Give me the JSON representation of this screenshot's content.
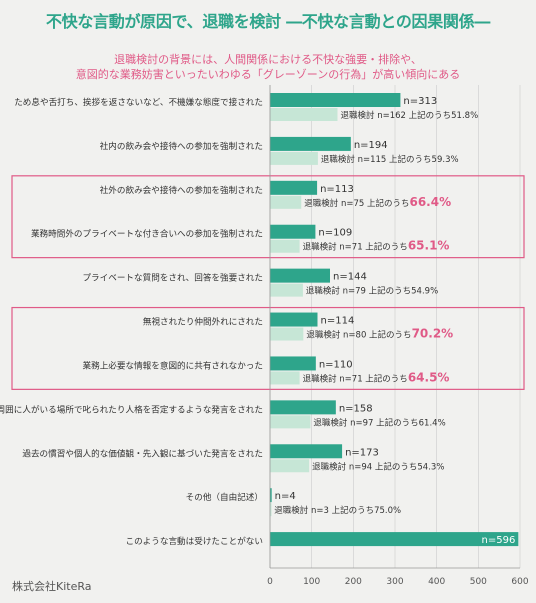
{
  "header": {
    "title": "不快な言動が原因で、退職を検討 ―不快な言動との因果関係―",
    "subtitle_lines": [
      "退職検討の背景には、人間関係における不快な強要・排除や、",
      "意図的な業務妨害といったいわゆる「グレーゾーンの行為」が高い傾向にある"
    ]
  },
  "footer": {
    "company": "株式会社KiteRa"
  },
  "colors": {
    "total_bar": "#2ea58b",
    "sub_bar": "#c6e6d6",
    "highlight": "#e05a87",
    "text": "#333333",
    "grid": "#cccccc"
  },
  "chart_data": {
    "type": "bar",
    "orientation": "horizontal",
    "xlim": [
      0,
      600
    ],
    "xticks": [
      0,
      100,
      200,
      300,
      400,
      500,
      600
    ],
    "grid": true,
    "rows": [
      {
        "label": "ため息や舌打ち、挨拶を返さないなど、不機嫌な態度で接された",
        "n": 313,
        "n_label": "n=313",
        "sub": 162,
        "sub_label": "退職検討 n=162 上記のうち",
        "pct": "51.8%",
        "highlight": false
      },
      {
        "label": "社内の飲み会や接待への参加を強制された",
        "n": 194,
        "n_label": "n=194",
        "sub": 115,
        "sub_label": "退職検討 n=115 上記のうち",
        "pct": "59.3%",
        "highlight": false
      },
      {
        "label": "社外の飲み会や接待への参加を強制された",
        "n": 113,
        "n_label": "n=113",
        "sub": 75,
        "sub_label": "退職検討 n=75 上記のうち",
        "pct": "66.4%",
        "highlight": true
      },
      {
        "label": "業務時間外のプライベートな付き合いへの参加を強制された",
        "n": 109,
        "n_label": "n=109",
        "sub": 71,
        "sub_label": "退職検討 n=71 上記のうち",
        "pct": "65.1%",
        "highlight": true
      },
      {
        "label": "プライベートな質問をされ、回答を強要された",
        "n": 144,
        "n_label": "n=144",
        "sub": 79,
        "sub_label": "退職検討 n=79 上記のうち",
        "pct": "54.9%",
        "highlight": false
      },
      {
        "label": "無視されたり仲間外れにされた",
        "n": 114,
        "n_label": "n=114",
        "sub": 80,
        "sub_label": "退職検討 n=80 上記のうち",
        "pct": "70.2%",
        "highlight": true
      },
      {
        "label": "業務上必要な情報を意図的に共有されなかった",
        "n": 110,
        "n_label": "n=110",
        "sub": 71,
        "sub_label": "退職検討 n=71 上記のうち",
        "pct": "64.5%",
        "highlight": true
      },
      {
        "label": "周囲に人がいる場所で叱られたり人格を否定するような発言をされた",
        "n": 158,
        "n_label": "n=158",
        "sub": 97,
        "sub_label": "退職検討 n=97 上記のうち",
        "pct": "61.4%",
        "highlight": false
      },
      {
        "label": "過去の慣習や個人的な価値観・先入観に基づいた発言をされた",
        "n": 173,
        "n_label": "n=173",
        "sub": 94,
        "sub_label": "退職検討 n=94 上記のうち",
        "pct": "54.3%",
        "highlight": false
      },
      {
        "label": "その他（自由記述）",
        "n": 4,
        "n_label": "n=4",
        "sub": 3,
        "sub_label": "退職検討 n=3 上記のうち",
        "pct": "75.0%",
        "highlight": false
      },
      {
        "label": "このような言動は受けたことがない",
        "n": 596,
        "n_label": "n=596",
        "sub": null,
        "sub_label": null,
        "pct": null,
        "highlight": false
      }
    ],
    "highlight_groups": [
      [
        2,
        3
      ],
      [
        5,
        6
      ]
    ]
  }
}
